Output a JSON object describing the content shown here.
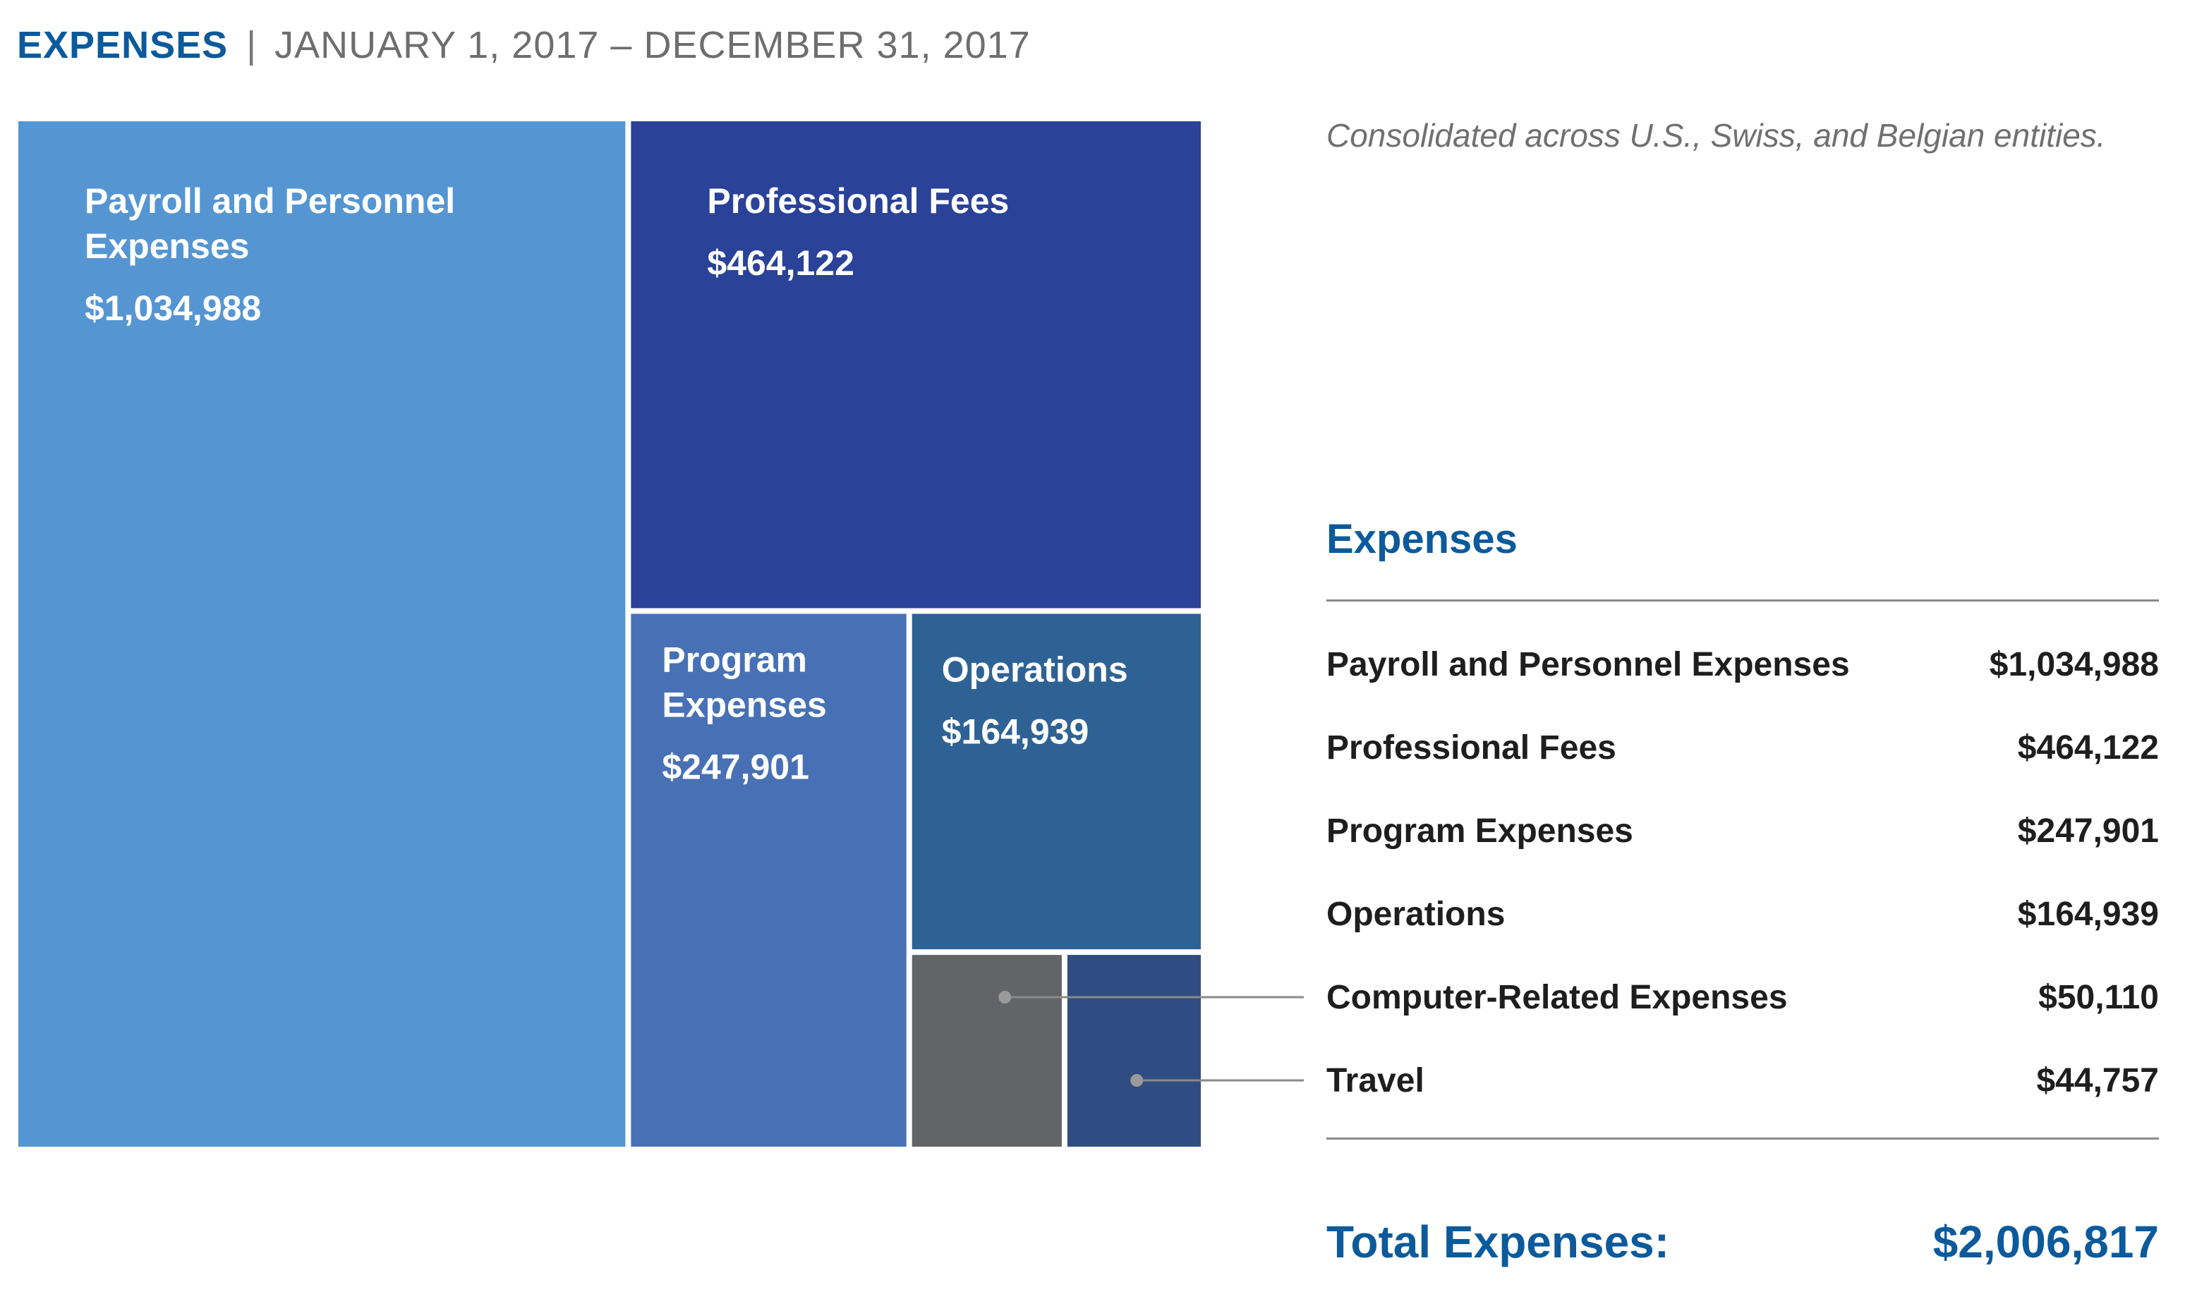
{
  "header": {
    "title": "EXPENSES",
    "separator": "|",
    "period": "JANUARY 1, 2017 – DECEMBER 31, 2017"
  },
  "note": "Consolidated across U.S., Swiss, and Belgian entities.",
  "chart_data": {
    "type": "treemap",
    "title": "Expenses",
    "series": [
      {
        "name": "Payroll and Personnel Expenses",
        "value": 1034988,
        "display": "$1,034,988",
        "color": "#5596d2",
        "label_lines": [
          "Payroll and Personnel",
          "Expenses"
        ]
      },
      {
        "name": "Professional Fees",
        "value": 464122,
        "display": "$464,122",
        "color": "#2a4297",
        "label_lines": [
          "Professional Fees"
        ]
      },
      {
        "name": "Program Expenses",
        "value": 247901,
        "display": "$247,901",
        "color": "#4871b5",
        "label_lines": [
          "Program",
          "Expenses"
        ]
      },
      {
        "name": "Operations",
        "value": 164939,
        "display": "$164,939",
        "color": "#2f6294",
        "label_lines": [
          "Operations"
        ]
      },
      {
        "name": "Computer-Related Expenses",
        "value": 50110,
        "display": "$50,110",
        "color": "#636468",
        "label_lines": []
      },
      {
        "name": "Travel",
        "value": 44757,
        "display": "$44,757",
        "color": "#2f4d82",
        "label_lines": []
      }
    ],
    "total_label": "Total Expenses:",
    "total": 2006817,
    "total_display": "$2,006,817"
  },
  "table": {
    "title": "Expenses",
    "rows": [
      {
        "label": "Payroll and Personnel Expenses",
        "amount": "$1,034,988"
      },
      {
        "label": "Professional Fees",
        "amount": "$464,122"
      },
      {
        "label": "Program Expenses",
        "amount": "$247,901"
      },
      {
        "label": "Operations",
        "amount": "$164,939"
      },
      {
        "label": "Computer-Related Expenses",
        "amount": "$50,110"
      },
      {
        "label": "Travel",
        "amount": "$44,757"
      }
    ],
    "total_label": "Total Expenses:",
    "total_amount": "$2,006,817"
  },
  "colors": {
    "accent": "#0b5a9c",
    "leader_line": "#8a8a8a",
    "leader_dot": "#9a9a9a"
  }
}
